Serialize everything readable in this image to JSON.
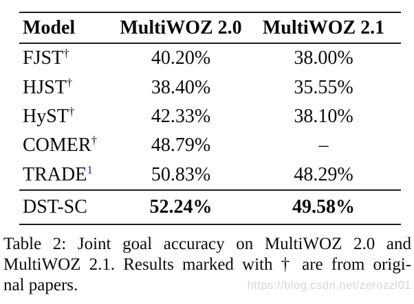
{
  "table": {
    "columns": [
      "Model",
      "MultiWOZ 2.0",
      "MultiWOZ 2.1"
    ],
    "rows": [
      {
        "model": "FJST",
        "sup": "†",
        "v20": "40.20%",
        "v21": "38.00%"
      },
      {
        "model": "HJST",
        "sup": "†",
        "v20": "38.40%",
        "v21": "35.55%"
      },
      {
        "model": "HyST",
        "sup": "†",
        "v20": "42.33%",
        "v21": "38.10%"
      },
      {
        "model": "COMER",
        "sup": "†",
        "v20": "48.79%",
        "v21": "–"
      },
      {
        "model": "TRADE",
        "sup": "1",
        "v20": "50.83%",
        "v21": "48.29%"
      },
      {
        "model": "DST-SC",
        "sup": "",
        "v20": "52.24%",
        "v21": "49.58%"
      }
    ]
  },
  "caption": {
    "lines": [
      "Table 2: Joint goal accuracy on MultiWOZ 2.0 and",
      "MultiWOZ 2.1. Results marked with † are from origi-",
      "nal papers."
    ]
  },
  "watermark": "https://blog.csdn.net/zerozzl01",
  "colors": {
    "text": "#0a0a0a",
    "link_blue": "#2222cc",
    "rule": "#1c1c1c",
    "watermark_gray": "#d4d7d9"
  }
}
